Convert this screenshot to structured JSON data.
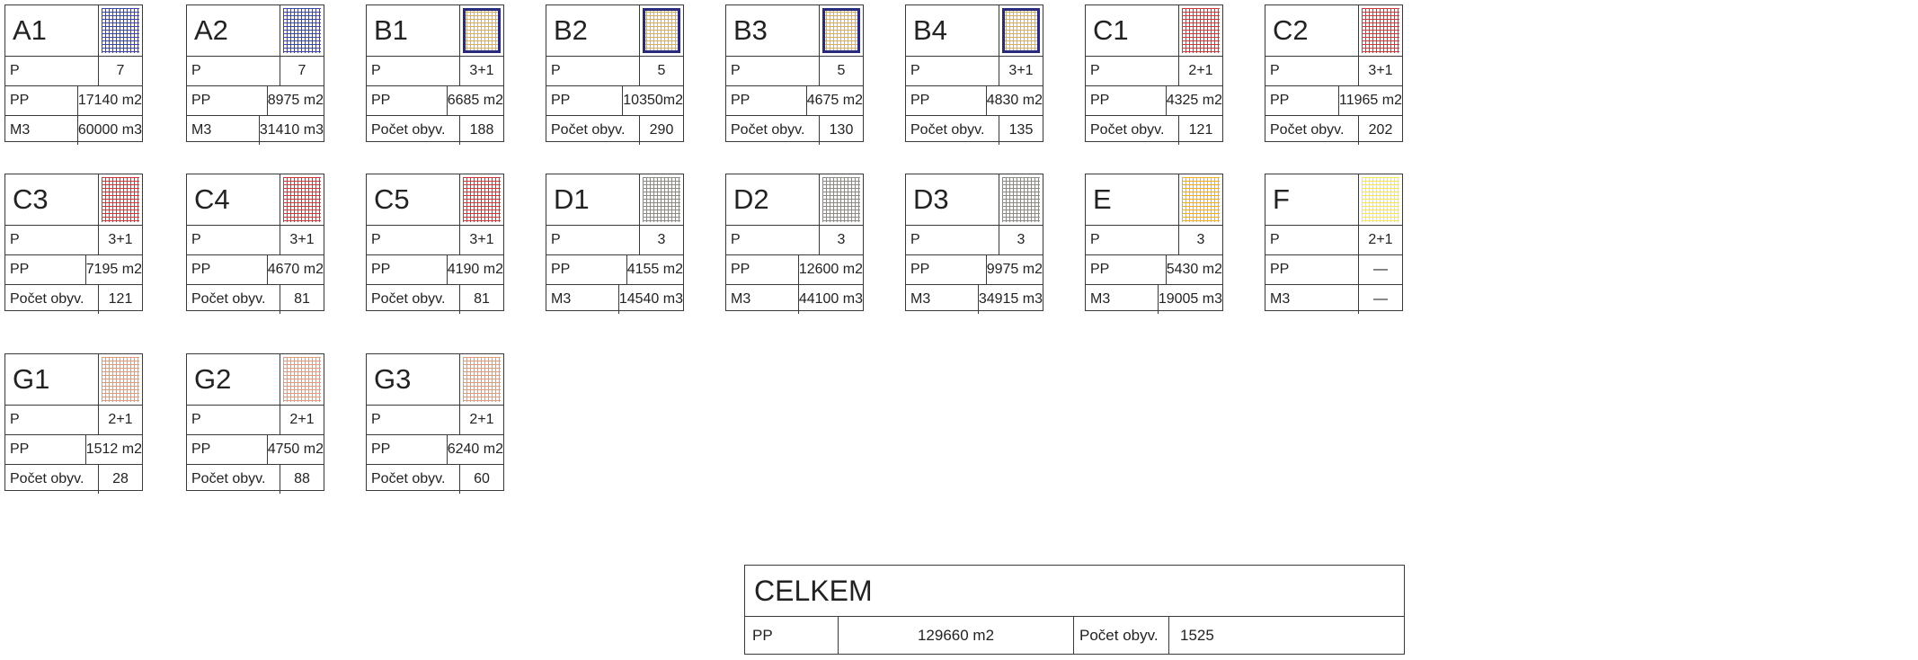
{
  "colors": {
    "blue": "#3b45b0",
    "sand": "#d9b05a",
    "frame": "#2a2a7a",
    "red": "#d2363c",
    "gray": "#8a8a8a",
    "orange": "#f0b020",
    "yellow": "#f5e855",
    "salmon": "#e39a78",
    "border": "#3a3a3a"
  },
  "cards": [
    {
      "code": "A1",
      "pattern": "blue",
      "rows": [
        {
          "label": "P",
          "value": "7"
        },
        {
          "label": "PP",
          "value": "17140 m2"
        },
        {
          "label": "M3",
          "value": "60000 m3"
        }
      ]
    },
    {
      "code": "A2",
      "pattern": "blue",
      "rows": [
        {
          "label": "P",
          "value": "7"
        },
        {
          "label": "PP",
          "value": "8975 m2"
        },
        {
          "label": "M3",
          "value": "31410 m3"
        }
      ]
    },
    {
      "code": "B1",
      "pattern": "sand",
      "outlined": true,
      "rows": [
        {
          "label": "P",
          "value": "3+1"
        },
        {
          "label": "PP",
          "value": "6685 m2"
        },
        {
          "label": "Počet obyv.",
          "value": "188"
        }
      ]
    },
    {
      "code": "B2",
      "pattern": "sand",
      "outlined": true,
      "rows": [
        {
          "label": "P",
          "value": "5"
        },
        {
          "label": "PP",
          "value": "10350m2"
        },
        {
          "label": "Počet obyv.",
          "value": "290"
        }
      ]
    },
    {
      "code": "B3",
      "pattern": "sand",
      "outlined": true,
      "rows": [
        {
          "label": "P",
          "value": "5"
        },
        {
          "label": "PP",
          "value": "4675 m2"
        },
        {
          "label": "Počet obyv.",
          "value": "130"
        }
      ]
    },
    {
      "code": "B4",
      "pattern": "sand",
      "outlined": true,
      "rows": [
        {
          "label": "P",
          "value": "3+1"
        },
        {
          "label": "PP",
          "value": "4830 m2"
        },
        {
          "label": "Počet obyv.",
          "value": "135"
        }
      ]
    },
    {
      "code": "C1",
      "pattern": "red",
      "rows": [
        {
          "label": "P",
          "value": "2+1"
        },
        {
          "label": "PP",
          "value": "4325 m2"
        },
        {
          "label": "Počet obyv.",
          "value": "121"
        }
      ]
    },
    {
      "code": "C2",
      "pattern": "red",
      "rows": [
        {
          "label": "P",
          "value": "3+1"
        },
        {
          "label": "PP",
          "value": "11965 m2"
        },
        {
          "label": "Počet obyv.",
          "value": "202"
        }
      ]
    },
    {
      "code": "C3",
      "pattern": "red",
      "rows": [
        {
          "label": "P",
          "value": "3+1"
        },
        {
          "label": "PP",
          "value": "7195 m2"
        },
        {
          "label": "Počet obyv.",
          "value": "121"
        }
      ]
    },
    {
      "code": "C4",
      "pattern": "red",
      "rows": [
        {
          "label": "P",
          "value": "3+1"
        },
        {
          "label": "PP",
          "value": "4670 m2"
        },
        {
          "label": "Počet obyv.",
          "value": "81"
        }
      ]
    },
    {
      "code": "C5",
      "pattern": "red",
      "rows": [
        {
          "label": "P",
          "value": "3+1"
        },
        {
          "label": "PP",
          "value": "4190 m2"
        },
        {
          "label": "Počet obyv.",
          "value": "81"
        }
      ]
    },
    {
      "code": "D1",
      "pattern": "gray",
      "rows": [
        {
          "label": "P",
          "value": "3"
        },
        {
          "label": "PP",
          "value": "4155 m2"
        },
        {
          "label": "M3",
          "value": "14540 m3"
        }
      ]
    },
    {
      "code": "D2",
      "pattern": "gray",
      "rows": [
        {
          "label": "P",
          "value": "3"
        },
        {
          "label": "PP",
          "value": "12600 m2"
        },
        {
          "label": "M3",
          "value": "44100 m3"
        }
      ]
    },
    {
      "code": "D3",
      "pattern": "gray",
      "rows": [
        {
          "label": "P",
          "value": "3"
        },
        {
          "label": "PP",
          "value": "9975 m2"
        },
        {
          "label": "M3",
          "value": "34915 m3"
        }
      ]
    },
    {
      "code": "E",
      "pattern": "orange",
      "rows": [
        {
          "label": "P",
          "value": "3"
        },
        {
          "label": "PP",
          "value": "5430 m2"
        },
        {
          "label": "M3",
          "value": "19005 m3"
        }
      ]
    },
    {
      "code": "F",
      "pattern": "yellow",
      "rows": [
        {
          "label": "P",
          "value": "2+1"
        },
        {
          "label": "PP",
          "value": "—"
        },
        {
          "label": "M3",
          "value": "—"
        }
      ]
    },
    {
      "code": "G1",
      "pattern": "salmon",
      "rows": [
        {
          "label": "P",
          "value": "2+1"
        },
        {
          "label": "PP",
          "value": "1512 m2"
        },
        {
          "label": "Počet obyv.",
          "value": "28"
        }
      ]
    },
    {
      "code": "G2",
      "pattern": "salmon",
      "rows": [
        {
          "label": "P",
          "value": "2+1"
        },
        {
          "label": "PP",
          "value": "4750 m2"
        },
        {
          "label": "Počet obyv.",
          "value": "88"
        }
      ]
    },
    {
      "code": "G3",
      "pattern": "salmon",
      "rows": [
        {
          "label": "P",
          "value": "2+1"
        },
        {
          "label": "PP",
          "value": "6240 m2"
        },
        {
          "label": "Počet obyv.",
          "value": "60"
        }
      ]
    }
  ],
  "total": {
    "title": "CELKEM",
    "pp_label": "PP",
    "pp_value": "129660 m2",
    "pop_label": "Počet obyv.",
    "pop_value": "1525"
  }
}
